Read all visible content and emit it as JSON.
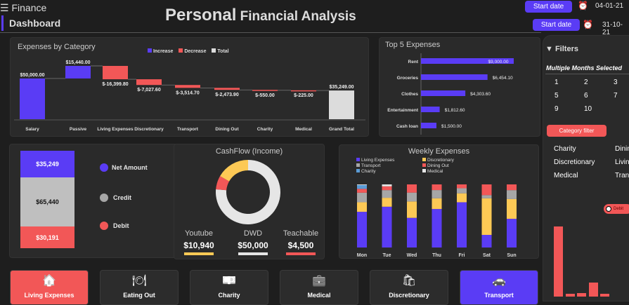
{
  "header": {
    "app_name": "Finance",
    "section": "Dashboard",
    "title_bold": "Personal",
    "title_rest": " Financial Analysis",
    "start_label_1": "Start date",
    "date_1": "04-01-21",
    "start_label_2": "Start date",
    "date_2": "31-10-21"
  },
  "colors": {
    "increase": "#5a3cf5",
    "decrease": "#f25757",
    "total": "#dcdcdc",
    "yellow": "#fdc955",
    "gray": "#a6a6a6",
    "charity": "#5b9bd5",
    "medical": "#e6e6e6"
  },
  "waterfall": {
    "title": "Expenses by Category",
    "legend": [
      "Increase",
      "Decrease",
      "Total"
    ]
  },
  "top5": {
    "title": "Top 5 Expenses"
  },
  "balance": {
    "net": "$35,249",
    "credit": "$65,440",
    "debit": "$30,191",
    "legend": [
      "Net Amount",
      "Credit",
      "Debit"
    ]
  },
  "cashflow": {
    "title": "CashFlow (Income)",
    "items": [
      {
        "name": "Youtube",
        "value": "$10,940"
      },
      {
        "name": "DWD",
        "value": "$50,000"
      },
      {
        "name": "Teachable",
        "value": "$4,500"
      }
    ]
  },
  "weekly": {
    "title": "Weekly Expenses"
  },
  "filters": {
    "title": "Filters",
    "months_label": "Multiple Months Selected",
    "months": [
      "1",
      "2",
      "3",
      "5",
      "6",
      "7",
      "9",
      "10"
    ],
    "category_button": "Category filter",
    "categories": [
      "Charity",
      "Dining",
      "Discretionary",
      "Living",
      "Medical",
      "Tran"
    ],
    "debit_tag": "Debit"
  },
  "tiles": [
    "Living Expenses",
    "Eating Out",
    "Charity",
    "Medical",
    "Discretionary",
    "Transport"
  ],
  "chart_data": [
    {
      "type": "bar",
      "subtype": "waterfall",
      "title": "Expenses by Category",
      "categories": [
        "Salary",
        "Passive",
        "Living Expenses",
        "Discretionary",
        "Transport",
        "Dining Out",
        "Charity",
        "Medical",
        "Grand Total"
      ],
      "values": [
        50000,
        15440,
        -16399.8,
        -7027.6,
        -3514.7,
        -2473.9,
        -550,
        -225,
        35249
      ],
      "labels": [
        "$50,000.00",
        "$15,440.00",
        "$-16,399.80",
        "$-7,027.60",
        "$-3,514.70",
        "$-2,473.90",
        "$-550.00",
        "$-225.00",
        "$35,249.00"
      ],
      "legend": [
        "Increase",
        "Decrease",
        "Total"
      ],
      "legend_position": "top"
    },
    {
      "type": "bar",
      "orientation": "horizontal",
      "title": "Top 5 Expenses",
      "categories": [
        "Rent",
        "Groceries",
        "Clothes",
        "Entertainment",
        "Cash loan"
      ],
      "values": [
        9000,
        6454.1,
        4303.6,
        1812.6,
        1500
      ],
      "labels": [
        "$9,000.00",
        "$6,454.10",
        "$4,303.60",
        "$1,812.60",
        "$1,500.00"
      ]
    },
    {
      "type": "pie",
      "subtype": "donut",
      "title": "CashFlow (Income)",
      "categories": [
        "DWD",
        "Teachable",
        "Youtube"
      ],
      "values": [
        50000,
        4500,
        10940
      ]
    },
    {
      "type": "bar",
      "subtype": "stacked",
      "title": "Weekly Expenses",
      "categories": [
        "Mon",
        "Tue",
        "Wed",
        "Thu",
        "Fri",
        "Sat",
        "Sun"
      ],
      "legend_position": "top",
      "series": [
        {
          "name": "Living Expenses",
          "values": [
            56,
            64,
            47,
            61,
            71,
            20,
            45
          ]
        },
        {
          "name": "Discretionary",
          "values": [
            15,
            14,
            26,
            17,
            14,
            58,
            31
          ]
        },
        {
          "name": "Transport",
          "values": [
            15,
            12,
            14,
            13,
            8,
            5,
            14
          ]
        },
        {
          "name": "Dining Out",
          "values": [
            6,
            6,
            13,
            9,
            6,
            17,
            9
          ]
        },
        {
          "name": "Charity",
          "values": [
            6,
            0,
            0,
            0,
            0,
            0,
            0
          ]
        },
        {
          "name": "Medical",
          "values": [
            1,
            3,
            0,
            0,
            0,
            0,
            0
          ]
        }
      ]
    }
  ]
}
